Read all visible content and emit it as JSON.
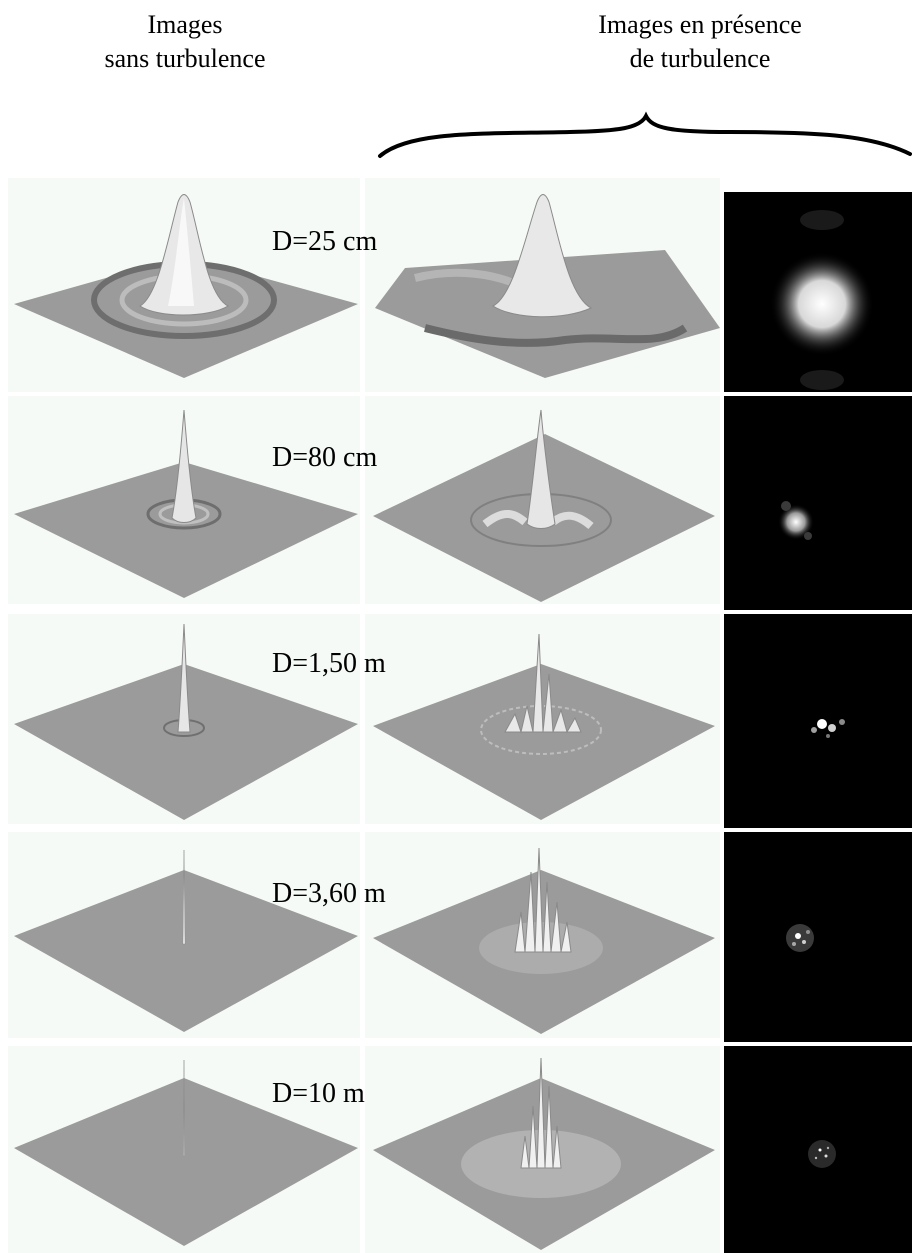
{
  "headers": {
    "left": [
      "Images",
      "sans turbulence"
    ],
    "right": [
      "Images en présence",
      "de turbulence"
    ]
  },
  "rows": [
    {
      "label": "D=25 cm"
    },
    {
      "label": "D=80 cm"
    },
    {
      "label": "D=1,50 m"
    },
    {
      "label": "D=3,60 m"
    },
    {
      "label": "D=10 m"
    }
  ],
  "colors": {
    "plane": "#9b9b9b",
    "tile_background": "#f6faf6",
    "speckle_background": "#000000"
  }
}
